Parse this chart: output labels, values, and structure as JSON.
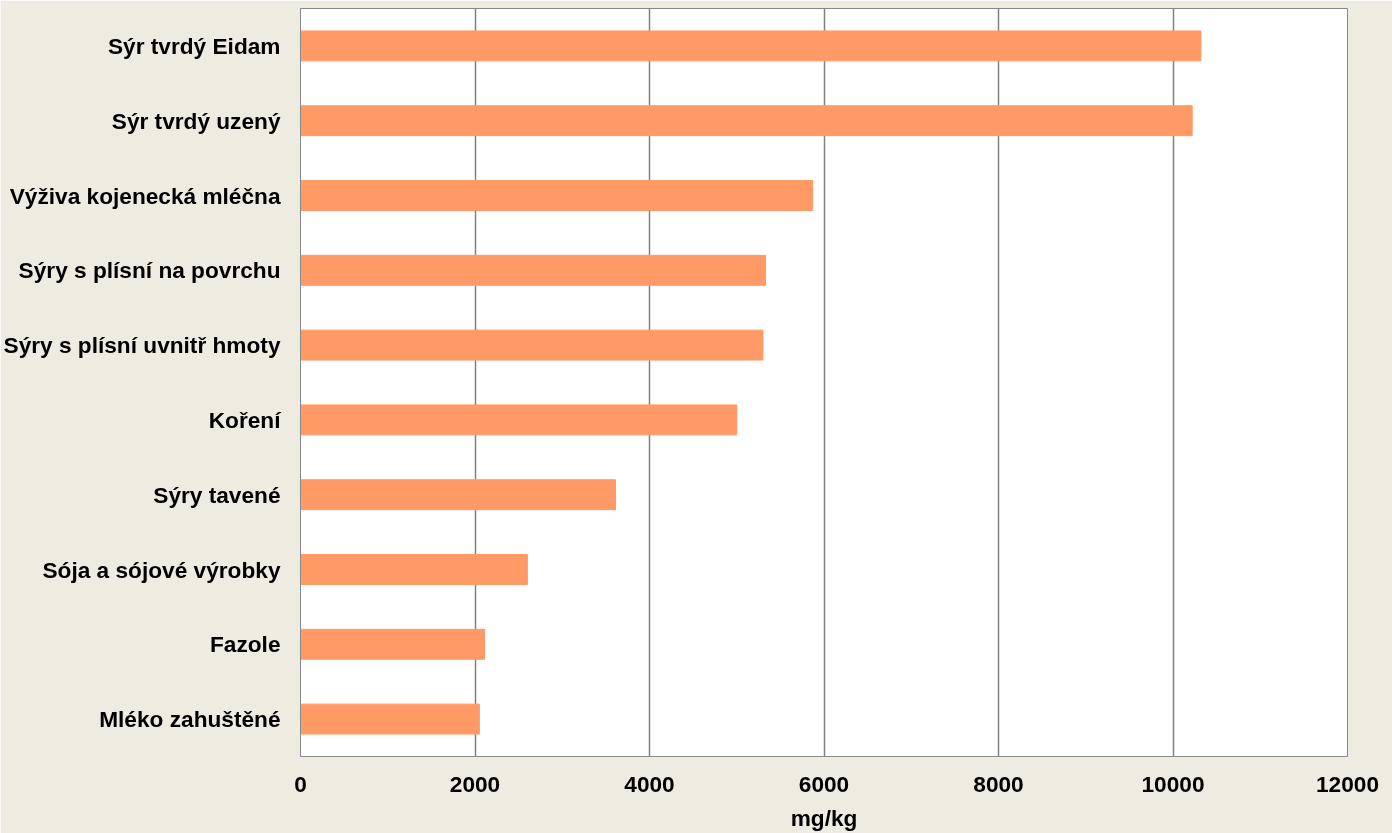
{
  "chart_data": {
    "type": "bar",
    "orientation": "horizontal",
    "xlabel": "mg/kg",
    "categories": [
      "Sýr tvrdý Eidam",
      "Sýr tvrdý uzený",
      "Výživa kojenecká mléčna",
      "Sýry s plísní na povrchu",
      "Sýry s plísní uvnitř hmoty",
      "Koření",
      "Sýry tavené",
      "Sója a sójové výrobky",
      "Fazole",
      "Mléko zahuštěné"
    ],
    "values": [
      10320,
      10220,
      5870,
      5330,
      5300,
      5000,
      3610,
      2600,
      2110,
      2050
    ],
    "color": "#ff9966",
    "xlim": [
      0,
      12000
    ],
    "xticks": [
      0,
      2000,
      4000,
      6000,
      8000,
      10000,
      12000
    ],
    "grid": "x"
  }
}
